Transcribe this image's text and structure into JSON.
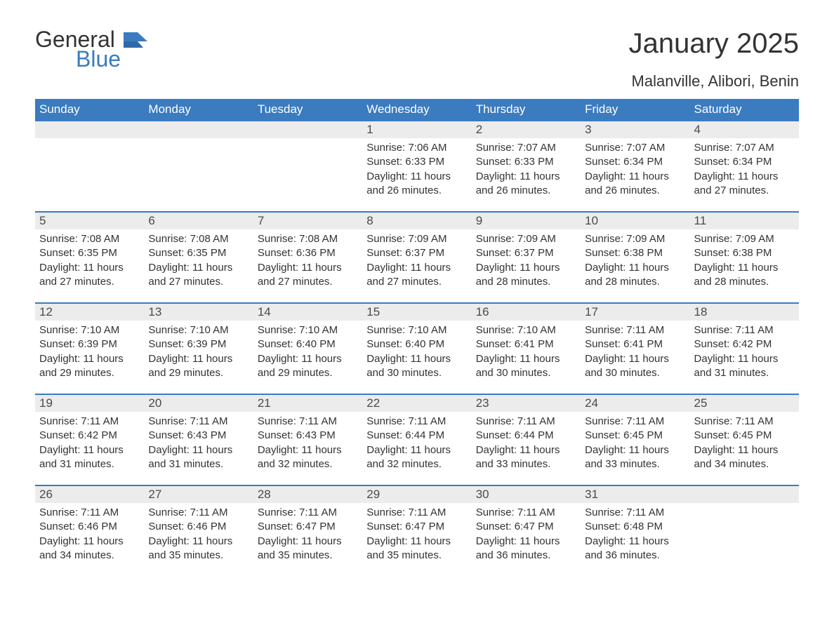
{
  "logo": {
    "general": "General",
    "blue": "Blue",
    "accent_color": "#3b7bbf"
  },
  "header": {
    "month_title": "January 2025",
    "location": "Malanville, Alibori, Benin"
  },
  "weekday_labels": [
    "Sunday",
    "Monday",
    "Tuesday",
    "Wednesday",
    "Thursday",
    "Friday",
    "Saturday"
  ],
  "colors": {
    "header_bg": "#3b7bbf",
    "header_text": "#ffffff",
    "daynum_bg": "#ececec",
    "text": "#333333",
    "rule": "#3b7bbf"
  },
  "weeks": [
    [
      {
        "empty": true
      },
      {
        "empty": true
      },
      {
        "empty": true
      },
      {
        "day": "1",
        "sunrise": "Sunrise: 7:06 AM",
        "sunset": "Sunset: 6:33 PM",
        "daylight1": "Daylight: 11 hours",
        "daylight2": "and 26 minutes."
      },
      {
        "day": "2",
        "sunrise": "Sunrise: 7:07 AM",
        "sunset": "Sunset: 6:33 PM",
        "daylight1": "Daylight: 11 hours",
        "daylight2": "and 26 minutes."
      },
      {
        "day": "3",
        "sunrise": "Sunrise: 7:07 AM",
        "sunset": "Sunset: 6:34 PM",
        "daylight1": "Daylight: 11 hours",
        "daylight2": "and 26 minutes."
      },
      {
        "day": "4",
        "sunrise": "Sunrise: 7:07 AM",
        "sunset": "Sunset: 6:34 PM",
        "daylight1": "Daylight: 11 hours",
        "daylight2": "and 27 minutes."
      }
    ],
    [
      {
        "day": "5",
        "sunrise": "Sunrise: 7:08 AM",
        "sunset": "Sunset: 6:35 PM",
        "daylight1": "Daylight: 11 hours",
        "daylight2": "and 27 minutes."
      },
      {
        "day": "6",
        "sunrise": "Sunrise: 7:08 AM",
        "sunset": "Sunset: 6:35 PM",
        "daylight1": "Daylight: 11 hours",
        "daylight2": "and 27 minutes."
      },
      {
        "day": "7",
        "sunrise": "Sunrise: 7:08 AM",
        "sunset": "Sunset: 6:36 PM",
        "daylight1": "Daylight: 11 hours",
        "daylight2": "and 27 minutes."
      },
      {
        "day": "8",
        "sunrise": "Sunrise: 7:09 AM",
        "sunset": "Sunset: 6:37 PM",
        "daylight1": "Daylight: 11 hours",
        "daylight2": "and 27 minutes."
      },
      {
        "day": "9",
        "sunrise": "Sunrise: 7:09 AM",
        "sunset": "Sunset: 6:37 PM",
        "daylight1": "Daylight: 11 hours",
        "daylight2": "and 28 minutes."
      },
      {
        "day": "10",
        "sunrise": "Sunrise: 7:09 AM",
        "sunset": "Sunset: 6:38 PM",
        "daylight1": "Daylight: 11 hours",
        "daylight2": "and 28 minutes."
      },
      {
        "day": "11",
        "sunrise": "Sunrise: 7:09 AM",
        "sunset": "Sunset: 6:38 PM",
        "daylight1": "Daylight: 11 hours",
        "daylight2": "and 28 minutes."
      }
    ],
    [
      {
        "day": "12",
        "sunrise": "Sunrise: 7:10 AM",
        "sunset": "Sunset: 6:39 PM",
        "daylight1": "Daylight: 11 hours",
        "daylight2": "and 29 minutes."
      },
      {
        "day": "13",
        "sunrise": "Sunrise: 7:10 AM",
        "sunset": "Sunset: 6:39 PM",
        "daylight1": "Daylight: 11 hours",
        "daylight2": "and 29 minutes."
      },
      {
        "day": "14",
        "sunrise": "Sunrise: 7:10 AM",
        "sunset": "Sunset: 6:40 PM",
        "daylight1": "Daylight: 11 hours",
        "daylight2": "and 29 minutes."
      },
      {
        "day": "15",
        "sunrise": "Sunrise: 7:10 AM",
        "sunset": "Sunset: 6:40 PM",
        "daylight1": "Daylight: 11 hours",
        "daylight2": "and 30 minutes."
      },
      {
        "day": "16",
        "sunrise": "Sunrise: 7:10 AM",
        "sunset": "Sunset: 6:41 PM",
        "daylight1": "Daylight: 11 hours",
        "daylight2": "and 30 minutes."
      },
      {
        "day": "17",
        "sunrise": "Sunrise: 7:11 AM",
        "sunset": "Sunset: 6:41 PM",
        "daylight1": "Daylight: 11 hours",
        "daylight2": "and 30 minutes."
      },
      {
        "day": "18",
        "sunrise": "Sunrise: 7:11 AM",
        "sunset": "Sunset: 6:42 PM",
        "daylight1": "Daylight: 11 hours",
        "daylight2": "and 31 minutes."
      }
    ],
    [
      {
        "day": "19",
        "sunrise": "Sunrise: 7:11 AM",
        "sunset": "Sunset: 6:42 PM",
        "daylight1": "Daylight: 11 hours",
        "daylight2": "and 31 minutes."
      },
      {
        "day": "20",
        "sunrise": "Sunrise: 7:11 AM",
        "sunset": "Sunset: 6:43 PM",
        "daylight1": "Daylight: 11 hours",
        "daylight2": "and 31 minutes."
      },
      {
        "day": "21",
        "sunrise": "Sunrise: 7:11 AM",
        "sunset": "Sunset: 6:43 PM",
        "daylight1": "Daylight: 11 hours",
        "daylight2": "and 32 minutes."
      },
      {
        "day": "22",
        "sunrise": "Sunrise: 7:11 AM",
        "sunset": "Sunset: 6:44 PM",
        "daylight1": "Daylight: 11 hours",
        "daylight2": "and 32 minutes."
      },
      {
        "day": "23",
        "sunrise": "Sunrise: 7:11 AM",
        "sunset": "Sunset: 6:44 PM",
        "daylight1": "Daylight: 11 hours",
        "daylight2": "and 33 minutes."
      },
      {
        "day": "24",
        "sunrise": "Sunrise: 7:11 AM",
        "sunset": "Sunset: 6:45 PM",
        "daylight1": "Daylight: 11 hours",
        "daylight2": "and 33 minutes."
      },
      {
        "day": "25",
        "sunrise": "Sunrise: 7:11 AM",
        "sunset": "Sunset: 6:45 PM",
        "daylight1": "Daylight: 11 hours",
        "daylight2": "and 34 minutes."
      }
    ],
    [
      {
        "day": "26",
        "sunrise": "Sunrise: 7:11 AM",
        "sunset": "Sunset: 6:46 PM",
        "daylight1": "Daylight: 11 hours",
        "daylight2": "and 34 minutes."
      },
      {
        "day": "27",
        "sunrise": "Sunrise: 7:11 AM",
        "sunset": "Sunset: 6:46 PM",
        "daylight1": "Daylight: 11 hours",
        "daylight2": "and 35 minutes."
      },
      {
        "day": "28",
        "sunrise": "Sunrise: 7:11 AM",
        "sunset": "Sunset: 6:47 PM",
        "daylight1": "Daylight: 11 hours",
        "daylight2": "and 35 minutes."
      },
      {
        "day": "29",
        "sunrise": "Sunrise: 7:11 AM",
        "sunset": "Sunset: 6:47 PM",
        "daylight1": "Daylight: 11 hours",
        "daylight2": "and 35 minutes."
      },
      {
        "day": "30",
        "sunrise": "Sunrise: 7:11 AM",
        "sunset": "Sunset: 6:47 PM",
        "daylight1": "Daylight: 11 hours",
        "daylight2": "and 36 minutes."
      },
      {
        "day": "31",
        "sunrise": "Sunrise: 7:11 AM",
        "sunset": "Sunset: 6:48 PM",
        "daylight1": "Daylight: 11 hours",
        "daylight2": "and 36 minutes."
      },
      {
        "empty": true
      }
    ]
  ]
}
